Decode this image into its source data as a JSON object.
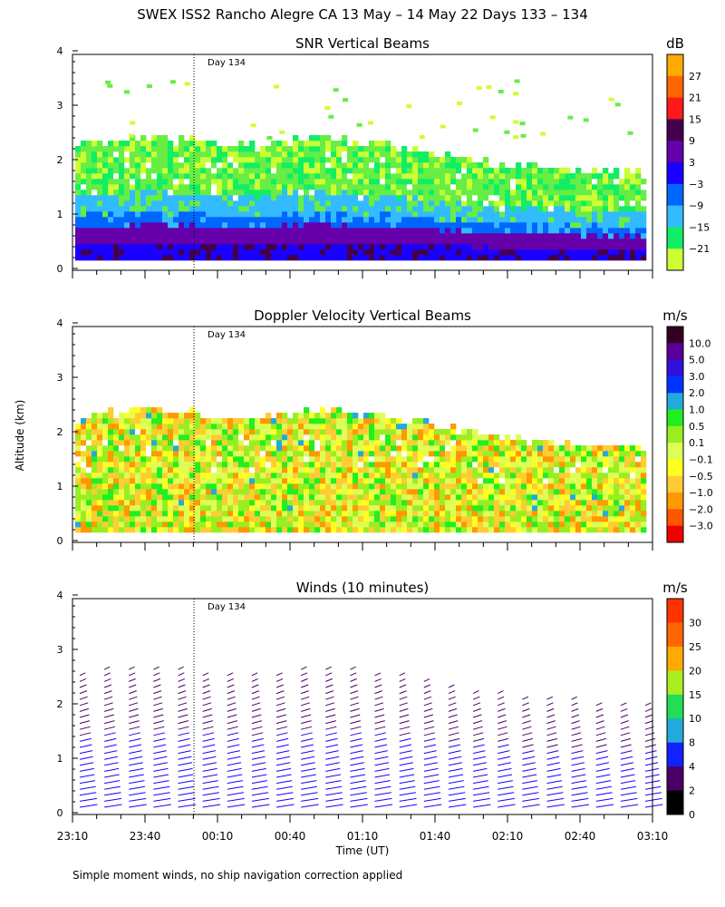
{
  "title": "SWEX ISS2 Rancho Alegre CA  13 May – 14 May 22 Days 133 – 134",
  "footnote": "Simple moment winds, no ship navigation correction applied",
  "ylabel": "Altitude (km)",
  "xlabel": "Time (UT)",
  "x_ticks": [
    "23:10",
    "23:40",
    "00:10",
    "00:40",
    "01:10",
    "01:40",
    "02:10",
    "02:40",
    "03:10"
  ],
  "day_marker": {
    "label": "Day 134",
    "time": "00:00"
  },
  "chart_data": [
    {
      "type": "heatmap",
      "title": "SNR Vertical Beams",
      "unit": "dB",
      "ylim": [
        0,
        4
      ],
      "yticks": [
        "0",
        "1",
        "2",
        "3",
        "4"
      ],
      "colorbar": {
        "labels": [
          "27",
          "21",
          "15",
          "9",
          "3",
          "−3",
          "−9",
          "−15",
          "−21"
        ],
        "colors": [
          "#ffaa00",
          "#ff6600",
          "#ff1a1a",
          "#44004d",
          "#6600aa",
          "#1a00ff",
          "#0066ff",
          "#33bbff",
          "#11ee66",
          "#ccff33"
        ]
      },
      "profile": {
        "note": "approximate echo top height (km) across the record, left to right",
        "top_km": [
          2.2,
          2.3,
          2.35,
          2.3,
          2.25,
          2.2,
          2.3,
          2.35,
          2.3,
          2.2,
          2.1,
          1.95,
          1.85,
          1.8,
          1.75,
          1.7,
          1.7
        ]
      }
    },
    {
      "type": "heatmap",
      "title": "Doppler Velocity Vertical Beams",
      "unit": "m/s",
      "ylim": [
        0,
        4
      ],
      "yticks": [
        "0",
        "1",
        "2",
        "3",
        "4"
      ],
      "colorbar": {
        "labels": [
          "10.0",
          "5.0",
          "3.0",
          "2.0",
          "1.0",
          "0.5",
          "0.1",
          "−0.1",
          "−0.5",
          "−1.0",
          "−2.0",
          "−3.0"
        ],
        "colors": [
          "#330022",
          "#5a0099",
          "#3311dd",
          "#0033ff",
          "#22aadd",
          "#22ee22",
          "#99ee22",
          "#ddff55",
          "#ffff22",
          "#ffcc33",
          "#ff9900",
          "#ff5500",
          "#ee0000"
        ]
      }
    },
    {
      "type": "wind-barbs",
      "title": "Winds (10 minutes)",
      "unit": "m/s",
      "ylim": [
        0,
        4
      ],
      "yticks": [
        "0",
        "1",
        "2",
        "3",
        "4"
      ],
      "colorbar": {
        "labels": [
          "30",
          "25",
          "20",
          "15",
          "10",
          "8",
          "4",
          "2",
          "0"
        ],
        "colors": [
          "#ff3300",
          "#ff6600",
          "#ffaa00",
          "#aaee22",
          "#22dd55",
          "#22aadd",
          "#1122ff",
          "#4a0066",
          "#000000"
        ]
      },
      "profiles_count": 24
    }
  ]
}
